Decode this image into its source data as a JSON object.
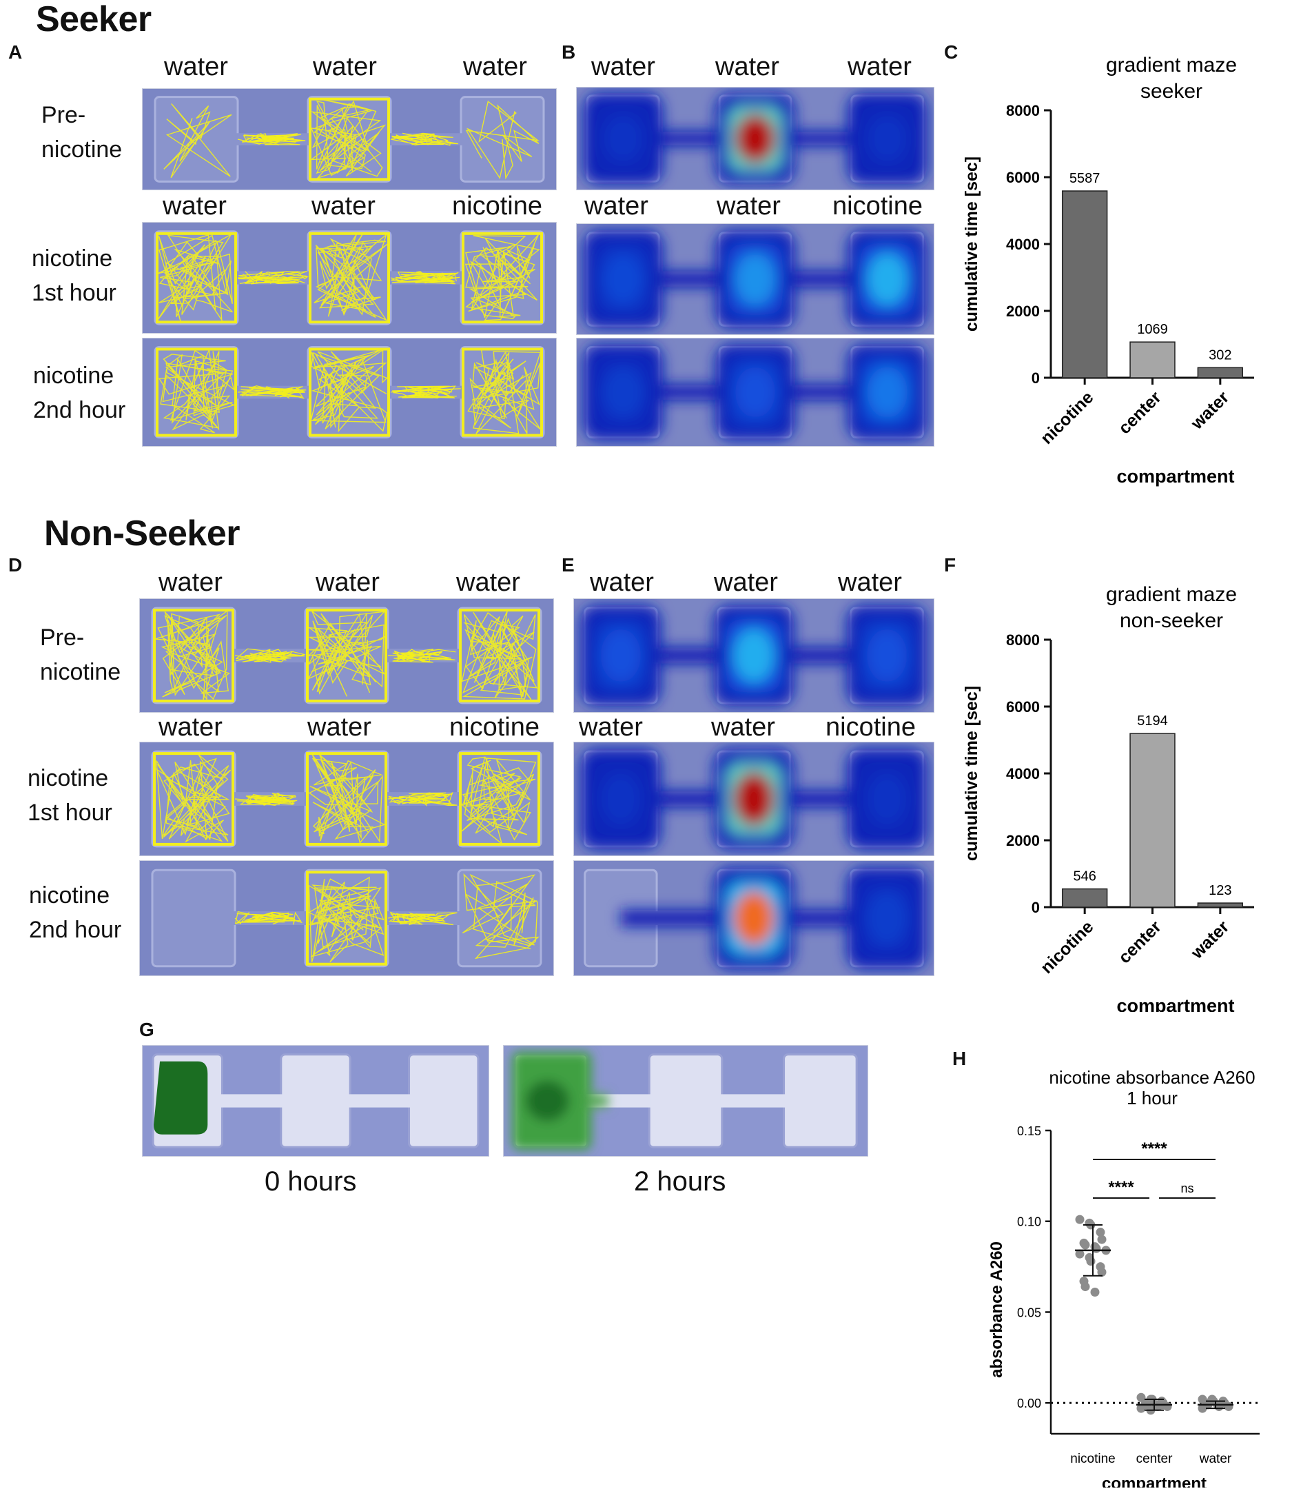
{
  "sections": {
    "seeker": "Seeker",
    "non_seeker": "Non-Seeker"
  },
  "panel_letters": [
    "A",
    "B",
    "C",
    "D",
    "E",
    "F",
    "G",
    "H"
  ],
  "maze_panels": {
    "seeker": {
      "rows": [
        {
          "label_line1": "Pre-",
          "label_line2": "nicotine",
          "compartments": [
            "water",
            "water",
            "water"
          ]
        },
        {
          "label_line1": "nicotine",
          "label_line2": "1st hour",
          "compartments": [
            "water",
            "water",
            "nicotine"
          ]
        },
        {
          "label_line1": "nicotine",
          "label_line2": "2nd hour",
          "compartments": []
        }
      ],
      "heatmap_compartments": [
        [
          "water",
          "water",
          "water"
        ],
        [
          "water",
          "water",
          "nicotine"
        ]
      ]
    },
    "non_seeker": {
      "rows": [
        {
          "label_line1": "Pre-",
          "label_line2": "nicotine",
          "compartments": [
            "water",
            "water",
            "water"
          ]
        },
        {
          "label_line1": "nicotine",
          "label_line2": "1st hour",
          "compartments": [
            "water",
            "water",
            "nicotine"
          ]
        },
        {
          "label_line1": "nicotine",
          "label_line2": "2nd hour",
          "compartments": []
        }
      ],
      "heatmap_compartments": [
        [
          "water",
          "water",
          "water"
        ],
        [
          "water",
          "water",
          "nicotine"
        ]
      ]
    }
  },
  "dye_panel": {
    "labels": [
      "0 hours",
      "2 hours"
    ]
  },
  "colors": {
    "maze_bg": "#7b86c4",
    "trace": "#f2ee1e",
    "bar_dark": "#6b6b6b",
    "bar_light": "#a6a6a6",
    "dot": "#8c8c8c"
  },
  "chart_data": [
    {
      "type": "bar",
      "title": "gradient maze",
      "subtitle": "seeker",
      "xlabel": "compartment",
      "ylabel": "cumulative time [sec]",
      "categories": [
        "nicotine",
        "center",
        "water"
      ],
      "values": [
        5587,
        1069,
        302
      ],
      "value_labels": [
        "5587",
        "1069",
        "302"
      ],
      "ylim": [
        0,
        8000
      ],
      "yticks": [
        "0",
        "2000",
        "4000",
        "6000",
        "8000"
      ]
    },
    {
      "type": "bar",
      "title": "gradient maze",
      "subtitle": "non-seeker",
      "xlabel": "compartment",
      "ylabel": "cumulative time [sec]",
      "categories": [
        "nicotine",
        "center",
        "water"
      ],
      "values": [
        546,
        5194,
        123
      ],
      "value_labels": [
        "546",
        "5194",
        "123"
      ],
      "ylim": [
        0,
        8000
      ],
      "yticks": [
        "0",
        "2000",
        "4000",
        "6000",
        "8000"
      ]
    },
    {
      "type": "scatter",
      "title": "nicotine absorbance A260",
      "subtitle": "1 hour",
      "xlabel": "compartment",
      "ylabel": "absorbance A260",
      "categories": [
        "nicotine",
        "center",
        "water"
      ],
      "ylim": [
        -0.017,
        0.15
      ],
      "yticks": [
        "0.00",
        "0.05",
        "0.10",
        "0.15"
      ],
      "points": [
        [
          0.101,
          0.099,
          0.098,
          0.094,
          0.09,
          0.088,
          0.087,
          0.086,
          0.085,
          0.084,
          0.082,
          0.08,
          0.078,
          0.075,
          0.072,
          0.067,
          0.064,
          0.061
        ],
        [
          0.003,
          0.002,
          0.001,
          0.001,
          0.0,
          0.0,
          -0.001,
          -0.001,
          -0.002,
          -0.002,
          -0.003,
          -0.004,
          0.002,
          -0.001
        ],
        [
          0.002,
          0.002,
          0.001,
          0.001,
          0.0,
          0.0,
          -0.001,
          -0.001,
          -0.002,
          -0.002,
          -0.003,
          0.001
        ]
      ],
      "means": [
        0.084,
        -0.001,
        -0.001
      ],
      "sd": [
        0.014,
        0.003,
        0.002
      ],
      "significance": [
        {
          "from": "nicotine",
          "to": "water",
          "label": "****"
        },
        {
          "from": "nicotine",
          "to": "center",
          "label": "****"
        },
        {
          "from": "center",
          "to": "water",
          "label": "ns"
        }
      ]
    }
  ]
}
